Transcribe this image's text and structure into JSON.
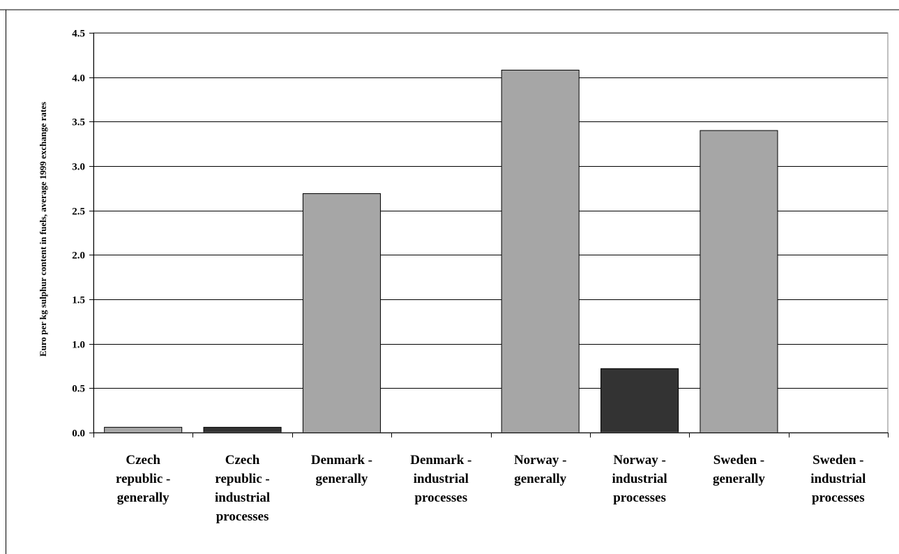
{
  "chart_data": {
    "type": "bar",
    "title": "",
    "xlabel": "",
    "ylabel": "Euro per kg sulphur content in fuels, average 1999 exchange rates",
    "ylim": [
      0,
      4.5
    ],
    "yticks": [
      "0.0",
      "0.5",
      "1.0",
      "1.5",
      "2.0",
      "2.5",
      "3.0",
      "3.5",
      "4.0",
      "4.5"
    ],
    "grid": true,
    "legend": "none",
    "categories": [
      "Czech republic - generally",
      "Czech republic - industrial processes",
      "Denmark - generally",
      "Denmark - industrial processes",
      "Norway - generally",
      "Norway - industrial processes",
      "Sweden - generally",
      "Sweden - industrial processes"
    ],
    "category_label_lines": [
      [
        "Czech",
        "republic -",
        "generally"
      ],
      [
        "Czech",
        "republic  -",
        "industrial",
        "processes"
      ],
      [
        "Denmark -",
        "generally"
      ],
      [
        "Denmark -",
        "industrial",
        "processes"
      ],
      [
        "Norway -",
        "generally"
      ],
      [
        "Norway -",
        "industrial",
        "processes"
      ],
      [
        "Sweden -",
        "generally"
      ],
      [
        "Sweden -",
        "industrial",
        "processes"
      ]
    ],
    "values": [
      0.06,
      0.06,
      2.69,
      0,
      4.08,
      0.72,
      3.4,
      0
    ],
    "bar_colors": [
      "#a6a6a6",
      "#333333",
      "#a6a6a6",
      "#333333",
      "#a6a6a6",
      "#333333",
      "#a6a6a6",
      "#333333"
    ]
  }
}
